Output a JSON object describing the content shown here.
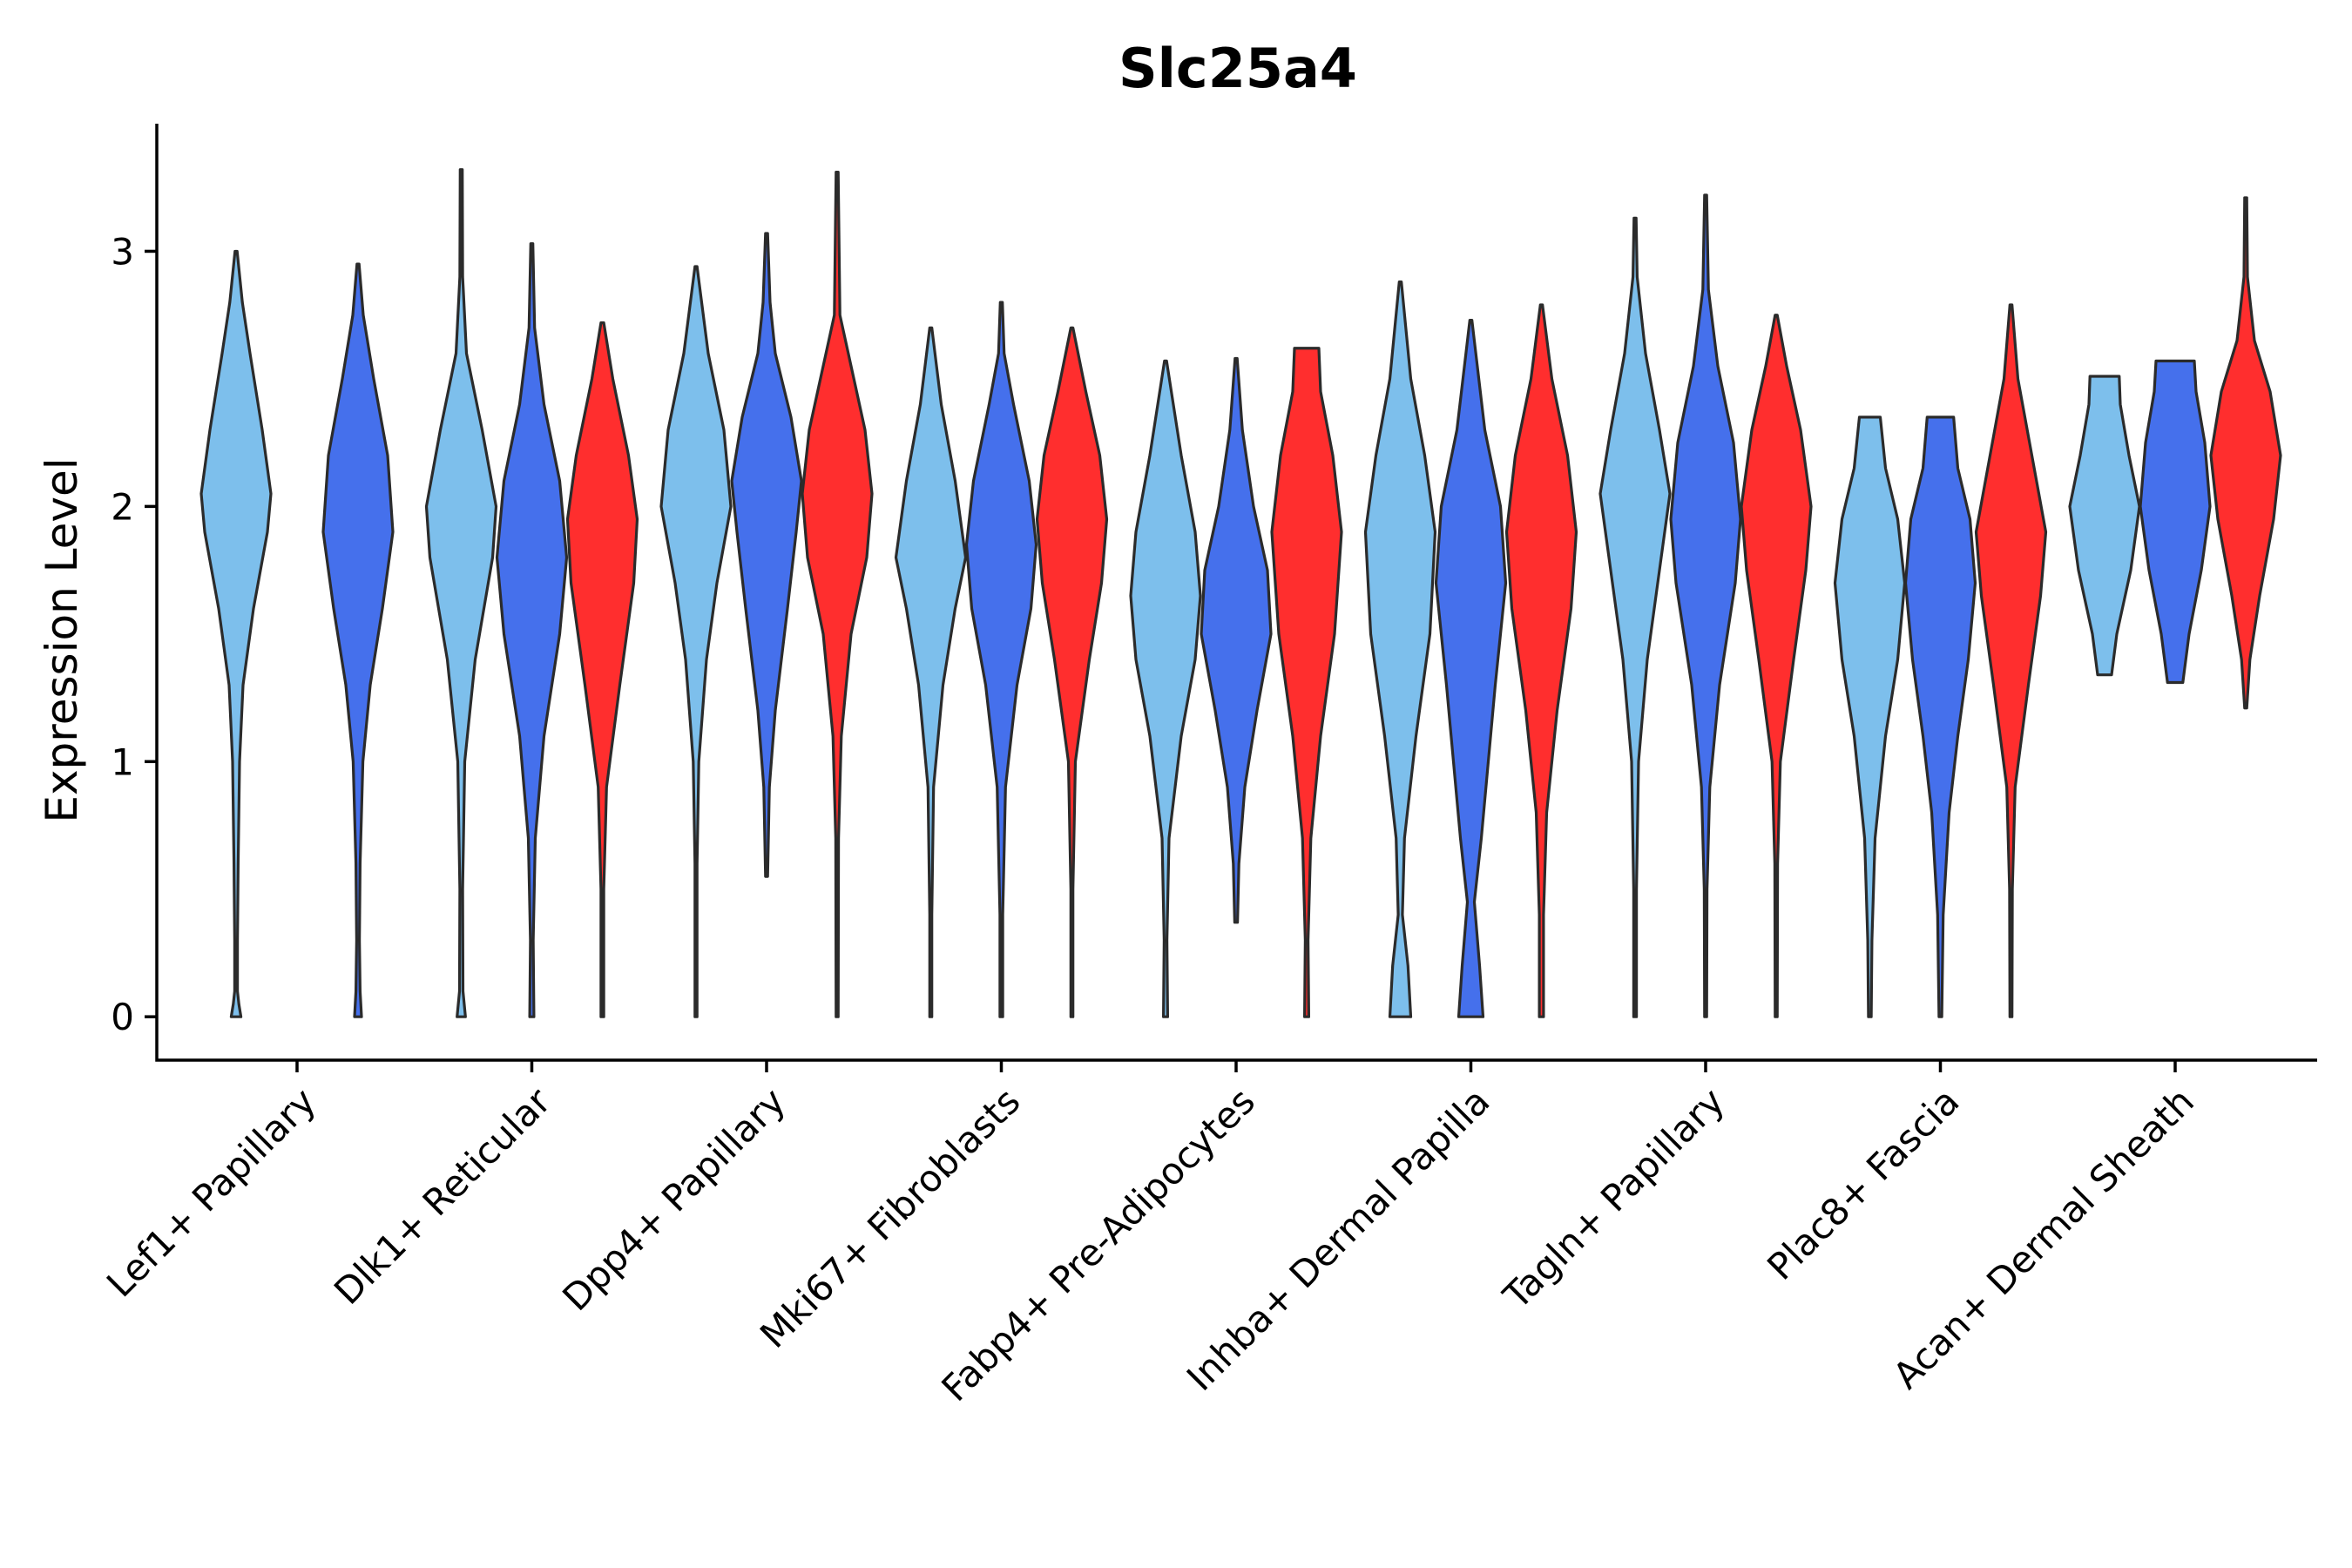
{
  "chart_data": {
    "type": "violin",
    "title": "Slc25a4",
    "xlabel": "",
    "ylabel": "Expression Level",
    "ylim": [
      -0.17,
      3.5
    ],
    "yticks": [
      0,
      1,
      2,
      3
    ],
    "categories": [
      "Lef1+ Papillary",
      "Dlk1+ Reticular",
      "Dpp4+ Papillary",
      "Mki67+ Fibroblasts",
      "Fabp4+ Pre-Adipocytes",
      "Inhba+ Dermal Papilla",
      "Tagln+ Papillary",
      "Plac8+ Fascia",
      "Acan+ Dermal Sheath"
    ],
    "series_colors": {
      "light_blue": "#7dbfec",
      "blue": "#4570ec",
      "red": "#ff2e2e"
    },
    "violins": [
      {
        "category": "Lef1+ Papillary",
        "color": "#7dbfec",
        "min": 0,
        "max": 3.0,
        "density": [
          [
            0,
            0.14
          ],
          [
            0.05,
            0.08
          ],
          [
            0.1,
            0.04
          ],
          [
            0.3,
            0.04
          ],
          [
            0.6,
            0.06
          ],
          [
            1.0,
            0.1
          ],
          [
            1.3,
            0.2
          ],
          [
            1.6,
            0.5
          ],
          [
            1.9,
            0.9
          ],
          [
            2.05,
            1.0
          ],
          [
            2.3,
            0.75
          ],
          [
            2.6,
            0.4
          ],
          [
            2.8,
            0.18
          ],
          [
            3.0,
            0.02
          ]
        ]
      },
      {
        "category": "Lef1+ Papillary",
        "color": "#4570ec",
        "min": 0,
        "max": 2.95,
        "density": [
          [
            0,
            0.1
          ],
          [
            0.1,
            0.06
          ],
          [
            0.3,
            0.04
          ],
          [
            0.6,
            0.06
          ],
          [
            1.0,
            0.14
          ],
          [
            1.3,
            0.35
          ],
          [
            1.6,
            0.7
          ],
          [
            1.9,
            1.0
          ],
          [
            2.2,
            0.85
          ],
          [
            2.5,
            0.45
          ],
          [
            2.75,
            0.15
          ],
          [
            2.95,
            0.02
          ]
        ]
      },
      {
        "category": "Dlk1+ Reticular",
        "color": "#7dbfec",
        "min": 0,
        "max": 3.32,
        "density": [
          [
            0,
            0.12
          ],
          [
            0.1,
            0.05
          ],
          [
            0.5,
            0.04
          ],
          [
            1.0,
            0.1
          ],
          [
            1.4,
            0.4
          ],
          [
            1.8,
            0.9
          ],
          [
            2.0,
            1.0
          ],
          [
            2.3,
            0.6
          ],
          [
            2.6,
            0.15
          ],
          [
            2.9,
            0.04
          ],
          [
            3.32,
            0.02
          ]
        ]
      },
      {
        "category": "Dlk1+ Reticular",
        "color": "#4570ec",
        "min": 0,
        "max": 3.03,
        "density": [
          [
            0,
            0.06
          ],
          [
            0.3,
            0.04
          ],
          [
            0.7,
            0.1
          ],
          [
            1.1,
            0.35
          ],
          [
            1.5,
            0.8
          ],
          [
            1.8,
            1.0
          ],
          [
            2.1,
            0.8
          ],
          [
            2.4,
            0.35
          ],
          [
            2.7,
            0.08
          ],
          [
            3.03,
            0.02
          ]
        ]
      },
      {
        "category": "Dlk1+ Reticular",
        "color": "#ff2e2e",
        "min": 0,
        "max": 2.72,
        "density": [
          [
            0,
            0.04
          ],
          [
            0.5,
            0.04
          ],
          [
            0.9,
            0.12
          ],
          [
            1.3,
            0.5
          ],
          [
            1.7,
            0.9
          ],
          [
            1.95,
            1.0
          ],
          [
            2.2,
            0.75
          ],
          [
            2.5,
            0.3
          ],
          [
            2.72,
            0.04
          ]
        ]
      },
      {
        "category": "Dpp4+ Papillary",
        "color": "#7dbfec",
        "min": 0,
        "max": 2.94,
        "density": [
          [
            0,
            0.02
          ],
          [
            0.6,
            0.03
          ],
          [
            1.0,
            0.08
          ],
          [
            1.4,
            0.3
          ],
          [
            1.7,
            0.6
          ],
          [
            2.0,
            1.0
          ],
          [
            2.3,
            0.8
          ],
          [
            2.6,
            0.35
          ],
          [
            2.94,
            0.03
          ]
        ]
      },
      {
        "category": "Dpp4+ Papillary",
        "color": "#4570ec",
        "min": 0.55,
        "max": 3.07,
        "density": [
          [
            0.55,
            0.02
          ],
          [
            0.9,
            0.08
          ],
          [
            1.2,
            0.25
          ],
          [
            1.6,
            0.6
          ],
          [
            1.9,
            0.85
          ],
          [
            2.1,
            1.0
          ],
          [
            2.35,
            0.7
          ],
          [
            2.6,
            0.25
          ],
          [
            2.8,
            0.1
          ],
          [
            3.07,
            0.02
          ]
        ]
      },
      {
        "category": "Dpp4+ Papillary",
        "color": "#ff2e2e",
        "min": 0,
        "max": 3.31,
        "density": [
          [
            0,
            0.02
          ],
          [
            0.7,
            0.04
          ],
          [
            1.1,
            0.12
          ],
          [
            1.5,
            0.4
          ],
          [
            1.8,
            0.85
          ],
          [
            2.05,
            1.0
          ],
          [
            2.3,
            0.8
          ],
          [
            2.55,
            0.4
          ],
          [
            2.75,
            0.08
          ],
          [
            3.31,
            0.02
          ]
        ]
      },
      {
        "category": "Mki67+ Fibroblasts",
        "color": "#7dbfec",
        "min": 0,
        "max": 2.7,
        "density": [
          [
            0,
            0.03
          ],
          [
            0.4,
            0.03
          ],
          [
            0.9,
            0.08
          ],
          [
            1.3,
            0.35
          ],
          [
            1.6,
            0.7
          ],
          [
            1.8,
            1.0
          ],
          [
            2.1,
            0.7
          ],
          [
            2.4,
            0.3
          ],
          [
            2.7,
            0.02
          ]
        ]
      },
      {
        "category": "Mki67+ Fibroblasts",
        "color": "#4570ec",
        "min": 0,
        "max": 2.8,
        "density": [
          [
            0,
            0.04
          ],
          [
            0.4,
            0.04
          ],
          [
            0.9,
            0.12
          ],
          [
            1.3,
            0.45
          ],
          [
            1.6,
            0.85
          ],
          [
            1.85,
            1.0
          ],
          [
            2.1,
            0.8
          ],
          [
            2.4,
            0.35
          ],
          [
            2.6,
            0.08
          ],
          [
            2.8,
            0.02
          ]
        ]
      },
      {
        "category": "Mki67+ Fibroblasts",
        "color": "#ff2e2e",
        "min": 0,
        "max": 2.7,
        "density": [
          [
            0,
            0.03
          ],
          [
            0.5,
            0.03
          ],
          [
            1.0,
            0.1
          ],
          [
            1.4,
            0.5
          ],
          [
            1.7,
            0.85
          ],
          [
            1.95,
            1.0
          ],
          [
            2.2,
            0.8
          ],
          [
            2.45,
            0.4
          ],
          [
            2.7,
            0.02
          ]
        ]
      },
      {
        "category": "Fabp4+ Pre-Adipocytes",
        "color": "#7dbfec",
        "min": 0,
        "max": 2.57,
        "density": [
          [
            0,
            0.06
          ],
          [
            0.3,
            0.04
          ],
          [
            0.7,
            0.1
          ],
          [
            1.1,
            0.45
          ],
          [
            1.4,
            0.85
          ],
          [
            1.65,
            1.0
          ],
          [
            1.9,
            0.85
          ],
          [
            2.2,
            0.45
          ],
          [
            2.57,
            0.02
          ]
        ]
      },
      {
        "category": "Fabp4+ Pre-Adipocytes",
        "color": "#4570ec",
        "min": 0.37,
        "max": 2.58,
        "density": [
          [
            0.37,
            0.04
          ],
          [
            0.6,
            0.08
          ],
          [
            0.9,
            0.25
          ],
          [
            1.2,
            0.6
          ],
          [
            1.5,
            1.0
          ],
          [
            1.75,
            0.9
          ],
          [
            2.0,
            0.5
          ],
          [
            2.3,
            0.18
          ],
          [
            2.58,
            0.02
          ]
        ]
      },
      {
        "category": "Fabp4+ Pre-Adipocytes",
        "color": "#ff2e2e",
        "min": 0,
        "max": 2.62,
        "density": [
          [
            0,
            0.06
          ],
          [
            0.3,
            0.04
          ],
          [
            0.7,
            0.12
          ],
          [
            1.1,
            0.4
          ],
          [
            1.5,
            0.8
          ],
          [
            1.9,
            1.0
          ],
          [
            2.2,
            0.75
          ],
          [
            2.45,
            0.4
          ],
          [
            2.62,
            0.35
          ]
        ]
      },
      {
        "category": "Inhba+ Dermal Papilla",
        "color": "#7dbfec",
        "min": 0,
        "max": 2.88,
        "density": [
          [
            0,
            0.3
          ],
          [
            0.2,
            0.22
          ],
          [
            0.4,
            0.06
          ],
          [
            0.7,
            0.12
          ],
          [
            1.1,
            0.45
          ],
          [
            1.5,
            0.85
          ],
          [
            1.9,
            1.0
          ],
          [
            2.2,
            0.7
          ],
          [
            2.5,
            0.3
          ],
          [
            2.88,
            0.02
          ]
        ]
      },
      {
        "category": "Inhba+ Dermal Papilla",
        "color": "#4570ec",
        "min": 0,
        "max": 2.73,
        "density": [
          [
            0,
            0.35
          ],
          [
            0.2,
            0.25
          ],
          [
            0.45,
            0.1
          ],
          [
            0.7,
            0.3
          ],
          [
            1.0,
            0.5
          ],
          [
            1.3,
            0.7
          ],
          [
            1.7,
            1.0
          ],
          [
            2.0,
            0.85
          ],
          [
            2.3,
            0.4
          ],
          [
            2.73,
            0.02
          ]
        ]
      },
      {
        "category": "Inhba+ Dermal Papilla",
        "color": "#ff2e2e",
        "min": 0,
        "max": 2.79,
        "density": [
          [
            0,
            0.06
          ],
          [
            0.4,
            0.06
          ],
          [
            0.8,
            0.15
          ],
          [
            1.2,
            0.45
          ],
          [
            1.6,
            0.85
          ],
          [
            1.9,
            1.0
          ],
          [
            2.2,
            0.75
          ],
          [
            2.5,
            0.3
          ],
          [
            2.79,
            0.02
          ]
        ]
      },
      {
        "category": "Tagln+ Papillary",
        "color": "#7dbfec",
        "min": 0,
        "max": 3.13,
        "density": [
          [
            0,
            0.04
          ],
          [
            0.5,
            0.04
          ],
          [
            1.0,
            0.1
          ],
          [
            1.4,
            0.35
          ],
          [
            1.8,
            0.75
          ],
          [
            2.05,
            1.0
          ],
          [
            2.3,
            0.7
          ],
          [
            2.6,
            0.3
          ],
          [
            2.9,
            0.06
          ],
          [
            3.13,
            0.02
          ]
        ]
      },
      {
        "category": "Tagln+ Papillary",
        "color": "#4570ec",
        "min": 0,
        "max": 3.22,
        "density": [
          [
            0,
            0.03
          ],
          [
            0.5,
            0.04
          ],
          [
            0.9,
            0.12
          ],
          [
            1.3,
            0.4
          ],
          [
            1.7,
            0.85
          ],
          [
            1.95,
            1.0
          ],
          [
            2.25,
            0.8
          ],
          [
            2.55,
            0.35
          ],
          [
            2.85,
            0.08
          ],
          [
            3.22,
            0.02
          ]
        ]
      },
      {
        "category": "Tagln+ Papillary",
        "color": "#ff2e2e",
        "min": 0,
        "max": 2.75,
        "density": [
          [
            0,
            0.03
          ],
          [
            0.6,
            0.04
          ],
          [
            1.0,
            0.12
          ],
          [
            1.4,
            0.5
          ],
          [
            1.75,
            0.85
          ],
          [
            2.0,
            1.0
          ],
          [
            2.3,
            0.7
          ],
          [
            2.55,
            0.3
          ],
          [
            2.75,
            0.02
          ]
        ]
      },
      {
        "category": "Plac8+ Fascia",
        "color": "#7dbfec",
        "min": 0,
        "max": 2.35,
        "density": [
          [
            0,
            0.04
          ],
          [
            0.3,
            0.06
          ],
          [
            0.7,
            0.15
          ],
          [
            1.1,
            0.45
          ],
          [
            1.4,
            0.8
          ],
          [
            1.7,
            1.0
          ],
          [
            1.95,
            0.8
          ],
          [
            2.15,
            0.45
          ],
          [
            2.35,
            0.3
          ]
        ]
      },
      {
        "category": "Plac8+ Fascia",
        "color": "#4570ec",
        "min": 0,
        "max": 2.35,
        "density": [
          [
            0,
            0.04
          ],
          [
            0.4,
            0.08
          ],
          [
            0.8,
            0.25
          ],
          [
            1.1,
            0.5
          ],
          [
            1.4,
            0.8
          ],
          [
            1.7,
            1.0
          ],
          [
            1.95,
            0.85
          ],
          [
            2.15,
            0.5
          ],
          [
            2.35,
            0.38
          ]
        ]
      },
      {
        "category": "Plac8+ Fascia",
        "color": "#ff2e2e",
        "min": 0,
        "max": 2.79,
        "density": [
          [
            0,
            0.03
          ],
          [
            0.5,
            0.04
          ],
          [
            0.9,
            0.12
          ],
          [
            1.3,
            0.5
          ],
          [
            1.65,
            0.85
          ],
          [
            1.9,
            1.0
          ],
          [
            2.2,
            0.6
          ],
          [
            2.5,
            0.2
          ],
          [
            2.79,
            0.02
          ]
        ]
      },
      {
        "category": "Acan+ Dermal Sheath",
        "color": "#7dbfec",
        "min": 1.34,
        "max": 2.51,
        "density": [
          [
            1.34,
            0.2
          ],
          [
            1.5,
            0.35
          ],
          [
            1.75,
            0.75
          ],
          [
            2.0,
            1.0
          ],
          [
            2.2,
            0.7
          ],
          [
            2.4,
            0.45
          ],
          [
            2.51,
            0.42
          ]
        ]
      },
      {
        "category": "Acan+ Dermal Sheath",
        "color": "#4570ec",
        "min": 1.31,
        "max": 2.57,
        "density": [
          [
            1.31,
            0.22
          ],
          [
            1.5,
            0.4
          ],
          [
            1.75,
            0.75
          ],
          [
            2.0,
            1.0
          ],
          [
            2.25,
            0.85
          ],
          [
            2.45,
            0.6
          ],
          [
            2.57,
            0.55
          ]
        ]
      },
      {
        "category": "Acan+ Dermal Sheath",
        "color": "#ff2e2e",
        "min": 1.21,
        "max": 3.21,
        "density": [
          [
            1.21,
            0.03
          ],
          [
            1.4,
            0.12
          ],
          [
            1.65,
            0.4
          ],
          [
            1.95,
            0.8
          ],
          [
            2.2,
            1.0
          ],
          [
            2.45,
            0.7
          ],
          [
            2.65,
            0.25
          ],
          [
            2.9,
            0.05
          ],
          [
            3.21,
            0.02
          ]
        ]
      }
    ]
  }
}
